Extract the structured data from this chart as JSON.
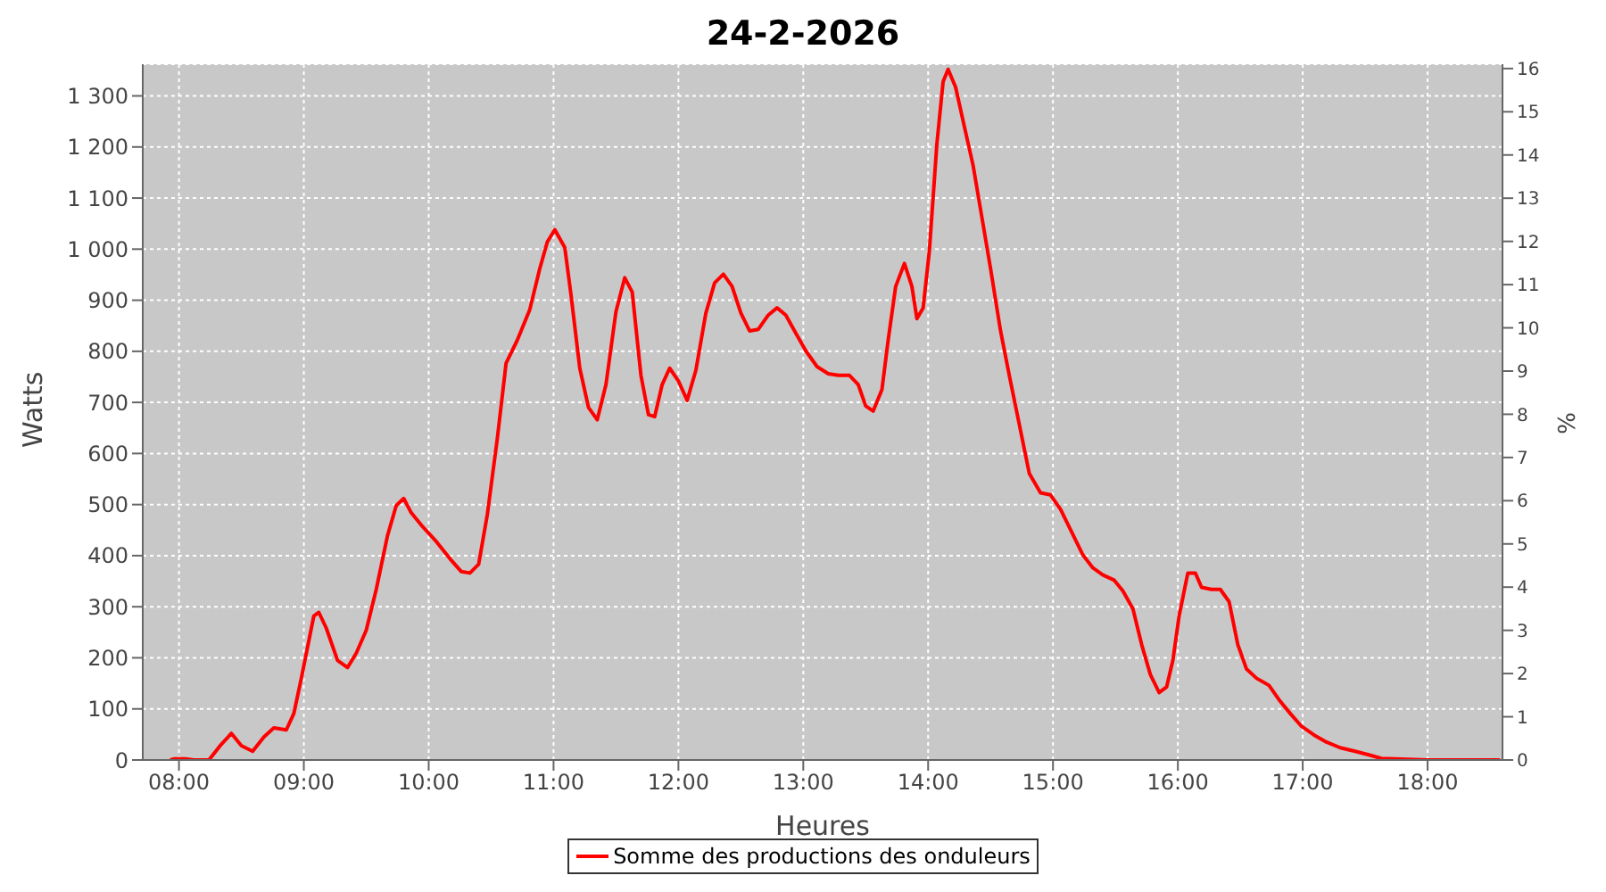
{
  "chart_data": {
    "type": "line",
    "title": "24-2-2026",
    "xlabel": "Heures",
    "ylabel": "Watts",
    "y2label": "%",
    "xlim": [
      7.71,
      18.6
    ],
    "ylim": [
      0,
      1362
    ],
    "y2lim": [
      0,
      16.1
    ],
    "xticks": [
      {
        "value": 8,
        "label": "08:00"
      },
      {
        "value": 9,
        "label": "09:00"
      },
      {
        "value": 10,
        "label": "10:00"
      },
      {
        "value": 11,
        "label": "11:00"
      },
      {
        "value": 12,
        "label": "12:00"
      },
      {
        "value": 13,
        "label": "13:00"
      },
      {
        "value": 14,
        "label": "14:00"
      },
      {
        "value": 15,
        "label": "15:00"
      },
      {
        "value": 16,
        "label": "16:00"
      },
      {
        "value": 17,
        "label": "17:00"
      },
      {
        "value": 18,
        "label": "18:00"
      }
    ],
    "yticks": [
      0,
      100,
      200,
      300,
      400,
      500,
      600,
      700,
      800,
      900,
      {
        "value": 1000,
        "label": "1 000"
      },
      {
        "value": 1100,
        "label": "1 100"
      },
      {
        "value": 1200,
        "label": "1 200"
      },
      {
        "value": 1300,
        "label": "1 300"
      }
    ],
    "y2ticks": [
      0,
      1,
      2,
      3,
      4,
      5,
      6,
      7,
      8,
      9,
      10,
      11,
      12,
      13,
      14,
      15,
      16
    ],
    "grid": true,
    "legend": "bottom",
    "marker": "none",
    "line_style": "solid",
    "series": [
      {
        "name": "Somme des productions des onduleurs",
        "color": "#ff0000",
        "x": [
          7.93,
          7.96,
          8.05,
          8.12,
          8.24,
          8.33,
          8.42,
          8.5,
          8.59,
          8.68,
          8.76,
          8.86,
          8.92,
          8.98,
          9.08,
          9.12,
          9.18,
          9.27,
          9.35,
          9.42,
          9.5,
          9.58,
          9.67,
          9.74,
          9.8,
          9.86,
          9.94,
          10.06,
          10.17,
          10.26,
          10.33,
          10.4,
          10.47,
          10.55,
          10.62,
          10.71,
          10.81,
          10.89,
          10.95,
          11.01,
          11.09,
          11.14,
          11.21,
          11.28,
          11.35,
          11.42,
          11.5,
          11.57,
          11.63,
          11.7,
          11.76,
          11.81,
          11.87,
          11.93,
          12.0,
          12.07,
          12.14,
          12.22,
          12.29,
          12.36,
          12.43,
          12.5,
          12.57,
          12.64,
          12.72,
          12.79,
          12.86,
          12.93,
          13.02,
          13.11,
          13.2,
          13.28,
          13.37,
          13.44,
          13.5,
          13.56,
          13.63,
          13.68,
          13.74,
          13.81,
          13.87,
          13.91,
          13.96,
          14.01,
          14.07,
          14.12,
          14.16,
          14.22,
          14.29,
          14.36,
          14.43,
          14.5,
          14.58,
          14.65,
          14.72,
          14.81,
          14.9,
          14.98,
          15.06,
          15.15,
          15.24,
          15.32,
          15.4,
          15.49,
          15.56,
          15.64,
          15.71,
          15.78,
          15.85,
          15.91,
          15.96,
          16.01,
          16.08,
          16.14,
          16.19,
          16.27,
          16.34,
          16.41,
          16.48,
          16.55,
          16.63,
          16.73,
          16.81,
          16.9,
          16.99,
          17.09,
          17.19,
          17.3,
          17.42,
          17.53,
          17.63,
          18.0,
          18.58
        ],
        "values": [
          0,
          2,
          2,
          0,
          0,
          28,
          52,
          28,
          17,
          45,
          63,
          59,
          91,
          160,
          282,
          289,
          258,
          195,
          181,
          209,
          254,
          334,
          439,
          498,
          512,
          484,
          460,
          428,
          394,
          369,
          366,
          383,
          481,
          630,
          777,
          822,
          882,
          962,
          1014,
          1038,
          1003,
          910,
          767,
          690,
          666,
          735,
          878,
          944,
          916,
          753,
          676,
          672,
          735,
          767,
          742,
          704,
          763,
          875,
          934,
          951,
          927,
          875,
          840,
          843,
          871,
          885,
          871,
          840,
          801,
          770,
          756,
          753,
          753,
          735,
          693,
          683,
          725,
          822,
          927,
          972,
          927,
          864,
          885,
          997,
          1206,
          1328,
          1352,
          1317,
          1240,
          1164,
          1063,
          962,
          840,
          753,
          669,
          561,
          523,
          519,
          491,
          446,
          401,
          376,
          362,
          352,
          331,
          296,
          226,
          167,
          132,
          143,
          195,
          282,
          366,
          366,
          338,
          334,
          334,
          310,
          226,
          178,
          160,
          146,
          118,
          91,
          66,
          49,
          35,
          24,
          17,
          10,
          3,
          0,
          0
        ]
      }
    ]
  }
}
